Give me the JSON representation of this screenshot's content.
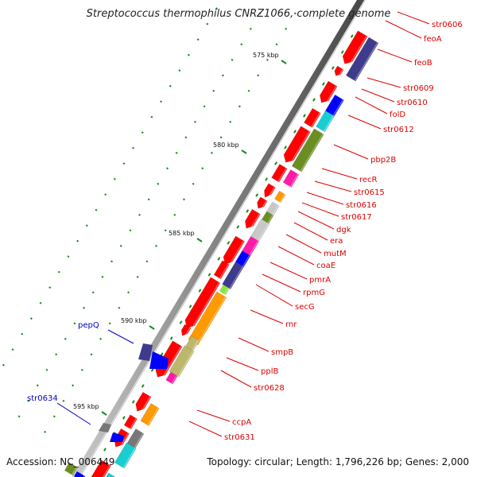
{
  "title": "Streptococcus thermophilus CNRZ1066, complete genome",
  "footer": {
    "accession_label": "Accession:",
    "accession": "NC_006449",
    "topology_label": "Topology:",
    "topology": "circular",
    "length_label": "Length:",
    "length": "1,796,226 bp",
    "genes_label": "Genes:",
    "genes": "2,000"
  },
  "colors": {
    "red": "#ff0000",
    "navy": "#3e3a8c",
    "blue": "#0000ff",
    "cyan": "#19cdd2",
    "olive": "#6b8e23",
    "magenta": "#ff1aa8",
    "orange": "#ff9900",
    "lightgray": "#c8c8c8",
    "khaki": "#bdb76b",
    "gray": "#777777",
    "green": "#8ee53f",
    "label_red": "#dd0000",
    "label_blue": "#0000cc",
    "tick_green": "#1a8a1a"
  },
  "kbp_ticks": [
    "575 kbp",
    "580 kbp",
    "585 kbp",
    "590 kbp",
    "595 kbp"
  ],
  "gene_labels_right": [
    "str0606",
    "feoA",
    "feoB",
    "str0609",
    "str0610",
    "folD",
    "str0612",
    "pbp2B",
    "recR",
    "str0615",
    "str0616",
    "str0617",
    "dgk",
    "era",
    "mutM",
    "coaE",
    "pmrA",
    "rpmG",
    "secG",
    "rnr",
    "smpB",
    "pplB",
    "str0628",
    "ccpA",
    "str0631"
  ],
  "gene_labels_left": [
    "pepQ",
    "str0634"
  ]
}
